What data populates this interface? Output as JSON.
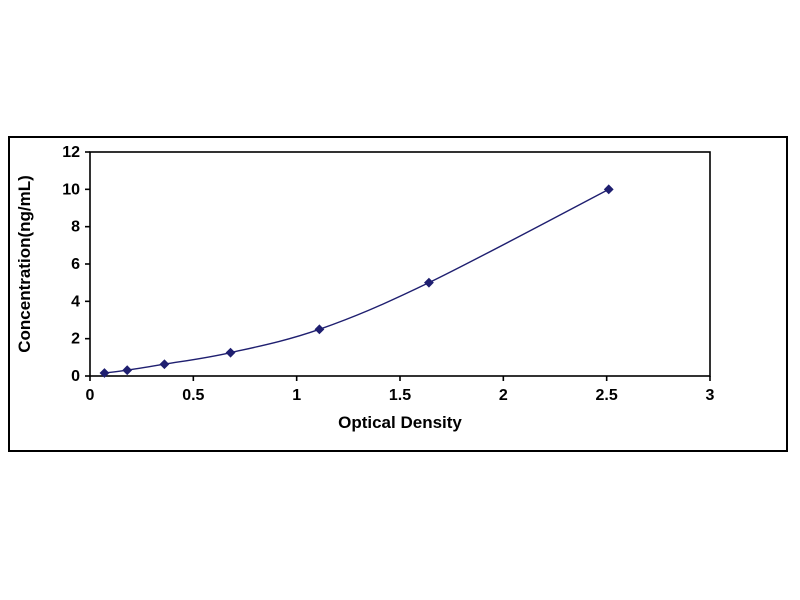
{
  "chart_data": {
    "type": "line",
    "x": [
      0.07,
      0.18,
      0.36,
      0.68,
      1.11,
      1.64,
      2.51
    ],
    "y": [
      0.16,
      0.31,
      0.63,
      1.25,
      2.5,
      5.0,
      10.0
    ],
    "title": "",
    "xlabel": "Optical Density",
    "ylabel": "Concentration(ng/mL)",
    "xlim": [
      0,
      3
    ],
    "ylim": [
      0,
      12
    ],
    "xticks": [
      0,
      0.5,
      1,
      1.5,
      2,
      2.5,
      3
    ],
    "yticks": [
      0,
      2,
      4,
      6,
      8,
      10,
      12
    ],
    "grid": false,
    "legend": "none",
    "marker": "diamond",
    "line_color": "#1f1f70",
    "marker_color": "#1f1f70",
    "axis_color": "#000000",
    "plot_background": "#ffffff"
  }
}
